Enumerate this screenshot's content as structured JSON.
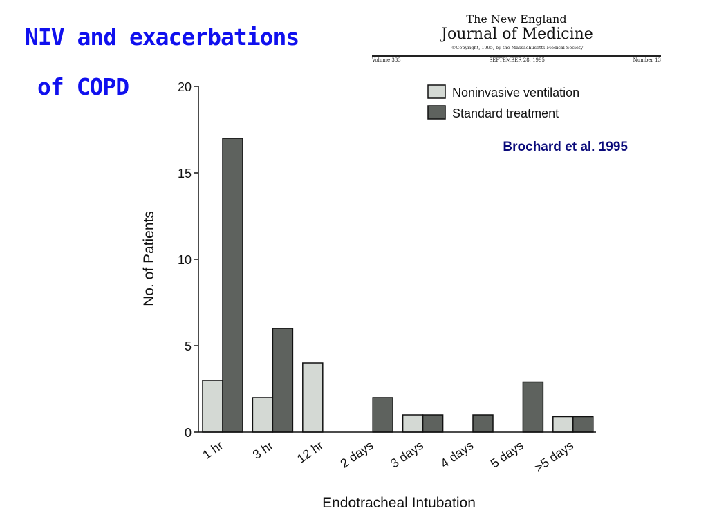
{
  "slide": {
    "title_line1": "NIV and exacerbations",
    "title_line2": "of COPD",
    "title_color": "#1010ee"
  },
  "journal": {
    "line1": "The New England",
    "line2": "Journal of Medicine",
    "copyright": "©Copyright, 1995, by the Massachusetts Medical Society",
    "volume": "Volume 333",
    "date": "SEPTEMBER 28, 1995",
    "number": "Number 13"
  },
  "chart_data": {
    "type": "bar",
    "categories": [
      "1 hr",
      "3 hr",
      "12 hr",
      "2 days",
      "3 days",
      "4 days",
      "5 days",
      ">5 days"
    ],
    "series": [
      {
        "name": "Noninvasive ventilation",
        "color": "#d4d9d4",
        "values": [
          3,
          2,
          4,
          0,
          1,
          0,
          0,
          0.9
        ]
      },
      {
        "name": "Standard treatment",
        "color": "#5e625e",
        "values": [
          17,
          6,
          0,
          2,
          1,
          1,
          2.9,
          0.9
        ]
      }
    ],
    "xlabel": "Endotracheal Intubation",
    "ylabel": "No. of Patients",
    "ylim": [
      0,
      20
    ],
    "yticks": [
      0,
      5,
      10,
      15,
      20
    ],
    "legend_position": "top-right",
    "annotation": "Brochard et al. 1995",
    "annotation_color": "#0a0a7a"
  }
}
